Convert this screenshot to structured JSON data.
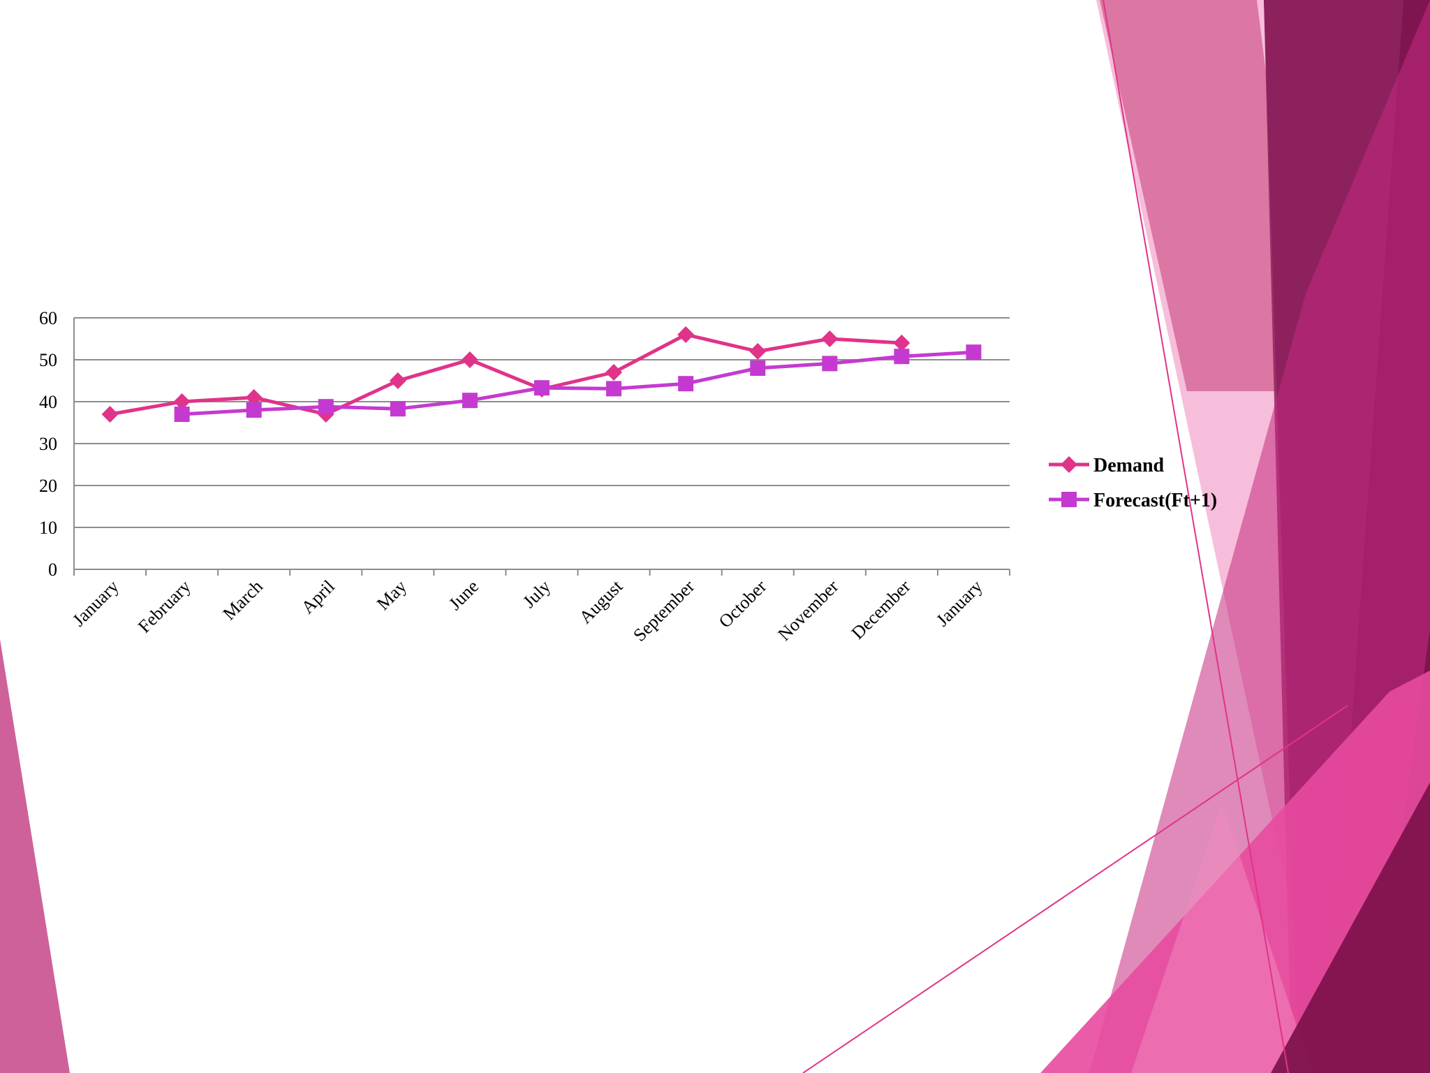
{
  "theme": {
    "accent_dark": "#7f1550",
    "accent_mid": "#c42a7f",
    "accent_light": "#f3a9cf",
    "demand_color": "#e0338a",
    "forecast_color": "#c43ad0",
    "grid_color": "#8c8c8c"
  },
  "chart_data": {
    "type": "line",
    "title": "",
    "xlabel": "",
    "ylabel": "",
    "categories": [
      "January",
      "February",
      "March",
      "April",
      "May",
      "June",
      "July",
      "August",
      "September",
      "October",
      "November",
      "December",
      "January"
    ],
    "ylim": [
      0,
      60
    ],
    "yticks": [
      0,
      10,
      20,
      30,
      40,
      50,
      60
    ],
    "grid": true,
    "legend_position": "right",
    "series": [
      {
        "name": "Demand",
        "marker": "diamond",
        "color": "#e0338a",
        "values": [
          37,
          40,
          41,
          37,
          45,
          50,
          43,
          47,
          56,
          52,
          55,
          54,
          null
        ]
      },
      {
        "name": "Forecast(Ft+1)",
        "marker": "square",
        "color": "#c43ad0",
        "values": [
          null,
          37,
          38,
          38.8,
          38.3,
          40.3,
          43.3,
          43.1,
          44.3,
          48,
          49.1,
          50.8,
          51.8
        ]
      }
    ]
  }
}
